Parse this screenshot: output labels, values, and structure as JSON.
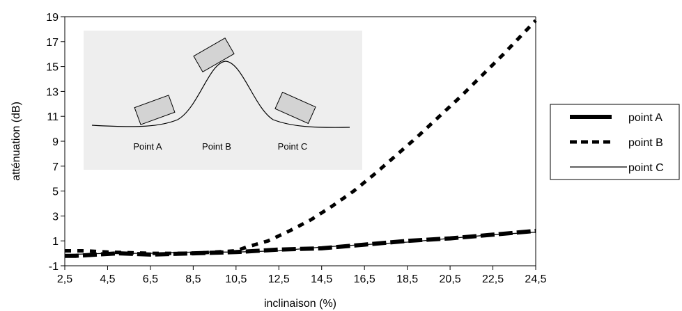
{
  "chart_data": {
    "type": "line",
    "xlabel": "inclinaison (%)",
    "ylabel": "atténuation (dB)",
    "xlim": [
      2.5,
      24.5
    ],
    "ylim": [
      -1,
      19
    ],
    "x_ticks": [
      "2,5",
      "4,5",
      "6,5",
      "8,5",
      "10,5",
      "12,5",
      "14,5",
      "16,5",
      "18,5",
      "20,5",
      "22,5",
      "24,5"
    ],
    "y_ticks": [
      "-1",
      "1",
      "3",
      "5",
      "7",
      "9",
      "11",
      "13",
      "15",
      "17",
      "19"
    ],
    "grid": false,
    "legend_position": "right",
    "series": [
      {
        "name": "point A",
        "style": "thick-dashed",
        "x": [
          2.5,
          3.0,
          4.0,
          5.0,
          6.5,
          8.5,
          10.5,
          12.5,
          14.5,
          16.5,
          18.5,
          20.5,
          22.5,
          24.5
        ],
        "y": [
          -0.2,
          -0.2,
          -0.1,
          0.0,
          -0.1,
          0.0,
          0.1,
          0.3,
          0.4,
          0.7,
          1.0,
          1.2,
          1.5,
          1.8
        ]
      },
      {
        "name": "point B",
        "style": "dotted-bold",
        "x": [
          2.5,
          3.5,
          4.5,
          6.5,
          8.5,
          10.5,
          11.0,
          12.0,
          13.0,
          14.0,
          15.0,
          16.0,
          17.0,
          18.0,
          19.0,
          20.0,
          21.0,
          22.0,
          23.0,
          24.0,
          24.5
        ],
        "y": [
          0.2,
          0.2,
          0.1,
          0.0,
          0.0,
          0.2,
          0.5,
          1.0,
          1.8,
          2.7,
          3.8,
          5.0,
          6.4,
          7.9,
          9.4,
          11.0,
          12.6,
          14.3,
          16.0,
          17.8,
          18.7
        ]
      },
      {
        "name": "point C",
        "style": "thin-solid",
        "x": [
          2.5,
          4.5,
          6.5,
          8.5,
          10.5,
          12.5,
          14.5,
          16.5,
          18.5,
          20.5,
          22.5,
          24.5
        ],
        "y": [
          -0.1,
          0.0,
          0.0,
          0.1,
          0.1,
          0.2,
          0.5,
          0.7,
          0.9,
          1.2,
          1.5,
          1.7
        ]
      }
    ],
    "inset": {
      "labels": [
        "Point A",
        "Point B",
        "Point C"
      ]
    }
  },
  "colors": {
    "plot_background": "#ffffff",
    "inset_background": "#eeeeee",
    "block_fill": "#d3d3d3",
    "line_color": "#000000"
  }
}
